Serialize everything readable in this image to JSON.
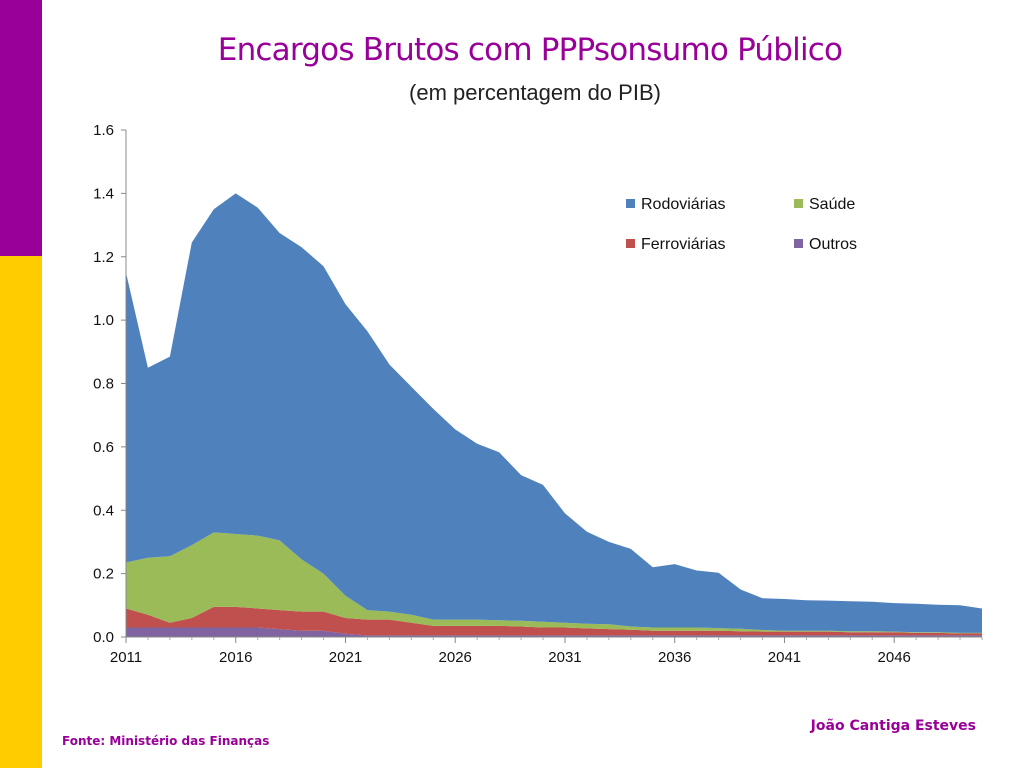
{
  "slide": {
    "title": "Encargos Brutos com PPPsonsumo Público",
    "subtitle": "(em percentagem do PIB)",
    "source": "Fonte: Ministério das Finanças",
    "author": "João Cantiga Esteves"
  },
  "colors": {
    "accent_top": "#990099",
    "accent_bottom": "#ffcc00",
    "title_text": "#990099"
  },
  "chart_data": {
    "type": "area",
    "stacked": true,
    "title": "Encargos Brutos com PPPsonsumo Público",
    "subtitle": "(em percentagem do PIB)",
    "xlabel": "",
    "ylabel": "",
    "ylim": [
      0,
      1.6
    ],
    "yticks": [
      "0.0",
      "0.2",
      "0.4",
      "0.6",
      "0.8",
      "1.0",
      "1.2",
      "1.4",
      "1.6"
    ],
    "xtick_labels": [
      "2011",
      "2016",
      "2021",
      "2026",
      "2031",
      "2036",
      "2041",
      "2046"
    ],
    "legend_position": "top-right",
    "grid": false,
    "x": [
      2011,
      2012,
      2013,
      2014,
      2015,
      2016,
      2017,
      2018,
      2019,
      2020,
      2021,
      2022,
      2023,
      2024,
      2025,
      2026,
      2027,
      2028,
      2029,
      2030,
      2031,
      2032,
      2033,
      2034,
      2035,
      2036,
      2037,
      2038,
      2039,
      2040,
      2041,
      2042,
      2043,
      2044,
      2045,
      2046,
      2047,
      2048,
      2049,
      2050
    ],
    "series": [
      {
        "name": "Outros",
        "color": "#8064a2",
        "values": [
          0.03,
          0.03,
          0.03,
          0.03,
          0.03,
          0.03,
          0.03,
          0.025,
          0.02,
          0.02,
          0.01,
          0.005,
          0.005,
          0.005,
          0.005,
          0.005,
          0.005,
          0.005,
          0.005,
          0.005,
          0.005,
          0.005,
          0.005,
          0.005,
          0.005,
          0.005,
          0.005,
          0.005,
          0.005,
          0.005,
          0.005,
          0.005,
          0.005,
          0.005,
          0.005,
          0.005,
          0.005,
          0.005,
          0.005,
          0.005
        ]
      },
      {
        "name": "Ferroviárias",
        "color": "#c0504d",
        "values": [
          0.06,
          0.04,
          0.015,
          0.03,
          0.065,
          0.065,
          0.06,
          0.06,
          0.06,
          0.06,
          0.05,
          0.05,
          0.05,
          0.04,
          0.03,
          0.03,
          0.03,
          0.03,
          0.028,
          0.025,
          0.025,
          0.022,
          0.02,
          0.018,
          0.015,
          0.015,
          0.015,
          0.015,
          0.013,
          0.012,
          0.012,
          0.012,
          0.012,
          0.01,
          0.01,
          0.01,
          0.008,
          0.008,
          0.006,
          0.006
        ]
      },
      {
        "name": "Saúde",
        "color": "#9bbb59",
        "values": [
          0.145,
          0.18,
          0.21,
          0.23,
          0.235,
          0.23,
          0.23,
          0.22,
          0.165,
          0.12,
          0.07,
          0.03,
          0.025,
          0.025,
          0.02,
          0.02,
          0.02,
          0.018,
          0.018,
          0.018,
          0.015,
          0.015,
          0.015,
          0.01,
          0.01,
          0.01,
          0.01,
          0.008,
          0.008,
          0.005,
          0.003,
          0.003,
          0.003,
          0.003,
          0.003,
          0.002,
          0.002,
          0.002,
          0.002,
          0.002
        ]
      },
      {
        "name": "Rodoviárias",
        "color": "#4f81bd",
        "values": [
          0.915,
          0.6,
          0.63,
          0.955,
          1.02,
          1.075,
          1.035,
          0.97,
          0.985,
          0.97,
          0.92,
          0.88,
          0.78,
          0.72,
          0.665,
          0.6,
          0.555,
          0.53,
          0.46,
          0.432,
          0.345,
          0.29,
          0.26,
          0.245,
          0.19,
          0.2,
          0.18,
          0.175,
          0.124,
          0.1,
          0.1,
          0.096,
          0.095,
          0.095,
          0.093,
          0.09,
          0.09,
          0.087,
          0.087,
          0.077
        ]
      }
    ],
    "legend": [
      "Rodoviárias",
      "Saúde",
      "Ferroviárias",
      "Outros"
    ]
  }
}
